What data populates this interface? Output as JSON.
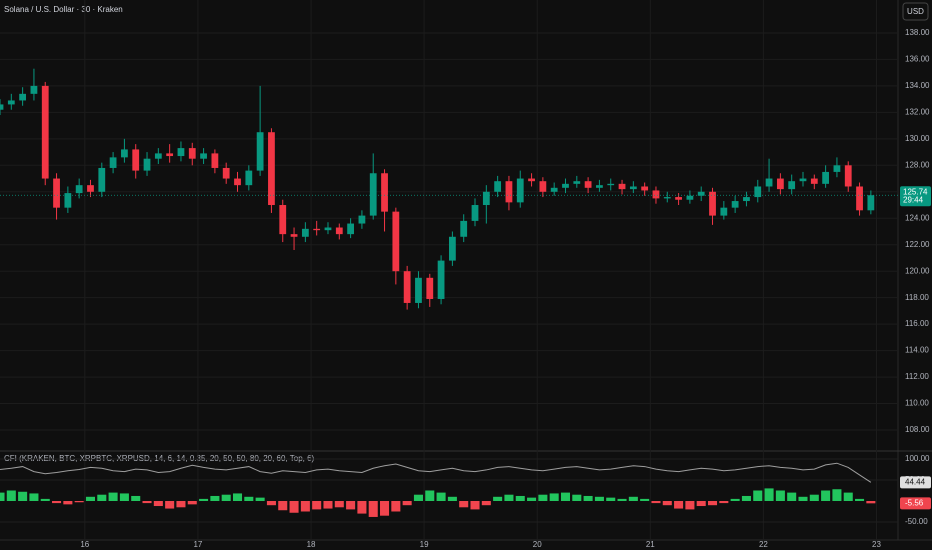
{
  "chart_data": [
    {
      "type": "candlestick",
      "title": "Solana / U.S. Dollar · 30 · Kraken",
      "currency": "USD",
      "countdown": "29:44",
      "up_color": "#089981",
      "down_color": "#f23645",
      "x": [
        15.25,
        15.35,
        15.45,
        15.55,
        15.65,
        15.75,
        15.85,
        15.95,
        16.05,
        16.15,
        16.25,
        16.35,
        16.45,
        16.55,
        16.65,
        16.75,
        16.85,
        16.95,
        17.05,
        17.15,
        17.25,
        17.35,
        17.45,
        17.55,
        17.65,
        17.75,
        17.85,
        17.95,
        18.05,
        18.15,
        18.25,
        18.35,
        18.45,
        18.55,
        18.65,
        18.75,
        18.85,
        18.95,
        19.05,
        19.15,
        19.25,
        19.35,
        19.45,
        19.55,
        19.65,
        19.75,
        19.85,
        19.95,
        20.05,
        20.15,
        20.25,
        20.35,
        20.45,
        20.55,
        20.65,
        20.75,
        20.85,
        20.95,
        21.05,
        21.15,
        21.25,
        21.35,
        21.45,
        21.55,
        21.65,
        21.75,
        21.85,
        21.95,
        22.05,
        22.15,
        22.25,
        22.35,
        22.45,
        22.55,
        22.65,
        22.75,
        22.85,
        22.95
      ],
      "open": [
        132.2,
        132.6,
        132.9,
        133.4,
        134.0,
        127.0,
        124.8,
        125.9,
        126.5,
        126.0,
        127.8,
        128.6,
        129.2,
        127.6,
        128.5,
        128.9,
        128.7,
        129.3,
        128.5,
        128.9,
        127.8,
        127.0,
        126.5,
        127.6,
        130.5,
        125.0,
        122.8,
        122.6,
        123.2,
        123.1,
        123.3,
        122.8,
        123.6,
        124.2,
        127.4,
        124.5,
        120.0,
        117.6,
        119.5,
        117.9,
        120.8,
        122.6,
        123.8,
        125.0,
        126.0,
        126.8,
        125.2,
        127.0,
        126.8,
        126.0,
        126.3,
        126.6,
        126.8,
        126.3,
        126.5,
        126.6,
        126.2,
        126.4,
        126.1,
        125.5,
        125.6,
        125.4,
        125.7,
        126.0,
        124.2,
        124.8,
        125.3,
        125.6,
        126.4,
        127.0,
        126.2,
        126.8,
        127.0,
        126.6,
        127.5,
        128.0,
        126.4,
        124.6
      ],
      "high": [
        133.0,
        133.4,
        133.9,
        135.3,
        134.3,
        127.4,
        126.4,
        127.0,
        126.9,
        128.2,
        129.0,
        130.0,
        129.6,
        129.0,
        129.3,
        129.6,
        129.8,
        129.7,
        129.3,
        129.2,
        128.2,
        127.5,
        128.0,
        134.0,
        130.8,
        125.4,
        123.3,
        123.7,
        123.8,
        123.7,
        123.6,
        124.0,
        124.6,
        128.9,
        127.7,
        124.8,
        120.4,
        120.0,
        119.8,
        121.2,
        123.0,
        124.3,
        125.5,
        126.5,
        127.2,
        127.2,
        127.6,
        127.4,
        127.1,
        126.7,
        127.0,
        127.2,
        127.1,
        126.9,
        127.0,
        126.9,
        126.8,
        126.7,
        126.4,
        126.0,
        125.9,
        126.1,
        126.4,
        126.3,
        125.3,
        125.7,
        126.0,
        126.9,
        128.5,
        127.4,
        127.3,
        127.5,
        127.3,
        128.0,
        128.6,
        128.3,
        126.7,
        126.1
      ],
      "low": [
        131.8,
        132.2,
        132.5,
        132.9,
        126.5,
        123.9,
        124.4,
        125.5,
        125.6,
        125.6,
        127.4,
        128.2,
        127.0,
        127.2,
        128.1,
        128.2,
        128.3,
        128.0,
        128.1,
        127.4,
        126.6,
        126.0,
        126.1,
        127.2,
        124.4,
        122.2,
        121.6,
        122.2,
        122.7,
        122.8,
        122.4,
        122.5,
        123.2,
        123.9,
        123.0,
        119.0,
        117.1,
        117.2,
        117.3,
        117.5,
        120.4,
        122.2,
        123.4,
        123.6,
        125.6,
        124.6,
        124.8,
        126.4,
        125.6,
        125.7,
        125.9,
        126.3,
        125.9,
        126.0,
        126.1,
        125.8,
        125.9,
        125.7,
        125.1,
        125.2,
        125.0,
        125.1,
        125.3,
        123.5,
        123.9,
        124.4,
        124.9,
        125.2,
        126.0,
        125.8,
        125.8,
        126.4,
        126.2,
        126.3,
        127.1,
        126.0,
        124.2,
        124.3
      ],
      "close": [
        132.6,
        132.9,
        133.4,
        134.0,
        127.0,
        124.8,
        125.9,
        126.5,
        126.0,
        127.8,
        128.6,
        129.2,
        127.6,
        128.5,
        128.9,
        128.7,
        129.3,
        128.5,
        128.9,
        127.8,
        127.0,
        126.5,
        127.6,
        130.5,
        125.0,
        122.8,
        122.6,
        123.2,
        123.1,
        123.3,
        122.8,
        123.6,
        124.2,
        127.4,
        124.5,
        120.0,
        117.6,
        119.5,
        117.9,
        120.8,
        122.6,
        123.8,
        125.0,
        126.0,
        126.8,
        125.2,
        127.0,
        126.8,
        126.0,
        126.3,
        126.6,
        126.8,
        126.3,
        126.5,
        126.6,
        126.2,
        126.4,
        126.1,
        125.5,
        125.6,
        125.4,
        125.7,
        126.0,
        124.2,
        124.8,
        125.3,
        125.6,
        126.4,
        127.0,
        126.2,
        126.8,
        127.0,
        126.6,
        127.5,
        128.0,
        126.4,
        124.6,
        125.74
      ],
      "xlim": [
        15.25,
        23.19
      ],
      "xticks": [
        16,
        17,
        18,
        19,
        20,
        21,
        22,
        23
      ],
      "ylim": [
        106.49,
        140.49
      ],
      "yticks": [
        {
          "value": 108,
          "label": "108.00"
        },
        {
          "value": 110,
          "label": "110.00"
        },
        {
          "value": 112,
          "label": "112.00"
        },
        {
          "value": 114,
          "label": "114.00"
        },
        {
          "value": 116,
          "label": "116.00"
        },
        {
          "value": 118,
          "label": "118.00"
        },
        {
          "value": 120,
          "label": "120.00"
        },
        {
          "value": 122,
          "label": "122.00"
        },
        {
          "value": 124,
          "label": "124.00"
        },
        {
          "value": 126,
          "label": "126.00"
        },
        {
          "value": 128,
          "label": "128.00"
        },
        {
          "value": 130,
          "label": "130.00"
        },
        {
          "value": 132,
          "label": "132.00"
        },
        {
          "value": 134,
          "label": "134.00"
        },
        {
          "value": 136,
          "label": "136.00"
        },
        {
          "value": 138,
          "label": "138.00"
        }
      ],
      "grid": true
    },
    {
      "type": "oscillator",
      "title": "CFI (KRAKEN, BTC, XRPBTC, XRPUSD, 14, 6, 14, 0.35, 20, 50, 50, 80, 20, 60, Top, 6)",
      "line": {
        "color": "#9e9e9e",
        "values": [
          75,
          78,
          82,
          70,
          65,
          68,
          72,
          75,
          80,
          78,
          72,
          70,
          76,
          74,
          68,
          70,
          78,
          85,
          80,
          76,
          74,
          78,
          82,
          70,
          66,
          72,
          70,
          68,
          74,
          76,
          72,
          70,
          68,
          78,
          84,
          88,
          80,
          72,
          70,
          74,
          78,
          72,
          70,
          74,
          80,
          82,
          78,
          74,
          72,
          76,
          80,
          82,
          78,
          74,
          76,
          80,
          84,
          82,
          76,
          72,
          70,
          74,
          78,
          76,
          72,
          74,
          78,
          82,
          84,
          80,
          78,
          74,
          76,
          86,
          90,
          80,
          62,
          44.44
        ]
      },
      "histogram": {
        "up_color": "#22c55e",
        "down_color": "#f0454e",
        "values": [
          20,
          25,
          22,
          18,
          5,
          -5,
          -8,
          -3,
          10,
          15,
          20,
          18,
          12,
          -5,
          -12,
          -18,
          -15,
          -8,
          5,
          12,
          15,
          18,
          10,
          8,
          -10,
          -22,
          -28,
          -25,
          -20,
          -18,
          -15,
          -20,
          -30,
          -38,
          -35,
          -25,
          -10,
          15,
          25,
          20,
          10,
          -15,
          -20,
          -10,
          10,
          15,
          12,
          8,
          15,
          18,
          20,
          15,
          12,
          10,
          8,
          5,
          10,
          5,
          -5,
          -10,
          -18,
          -20,
          -12,
          -10,
          -5,
          5,
          12,
          25,
          30,
          25,
          20,
          10,
          15,
          25,
          28,
          20,
          5,
          -5.56
        ]
      },
      "ylim": [
        -92.9,
        116.7
      ],
      "yticks": [
        {
          "value": -50,
          "label": "-50.00"
        },
        {
          "value": 50,
          "label": "50.00"
        },
        {
          "value": 100,
          "label": "100.00"
        }
      ]
    }
  ]
}
